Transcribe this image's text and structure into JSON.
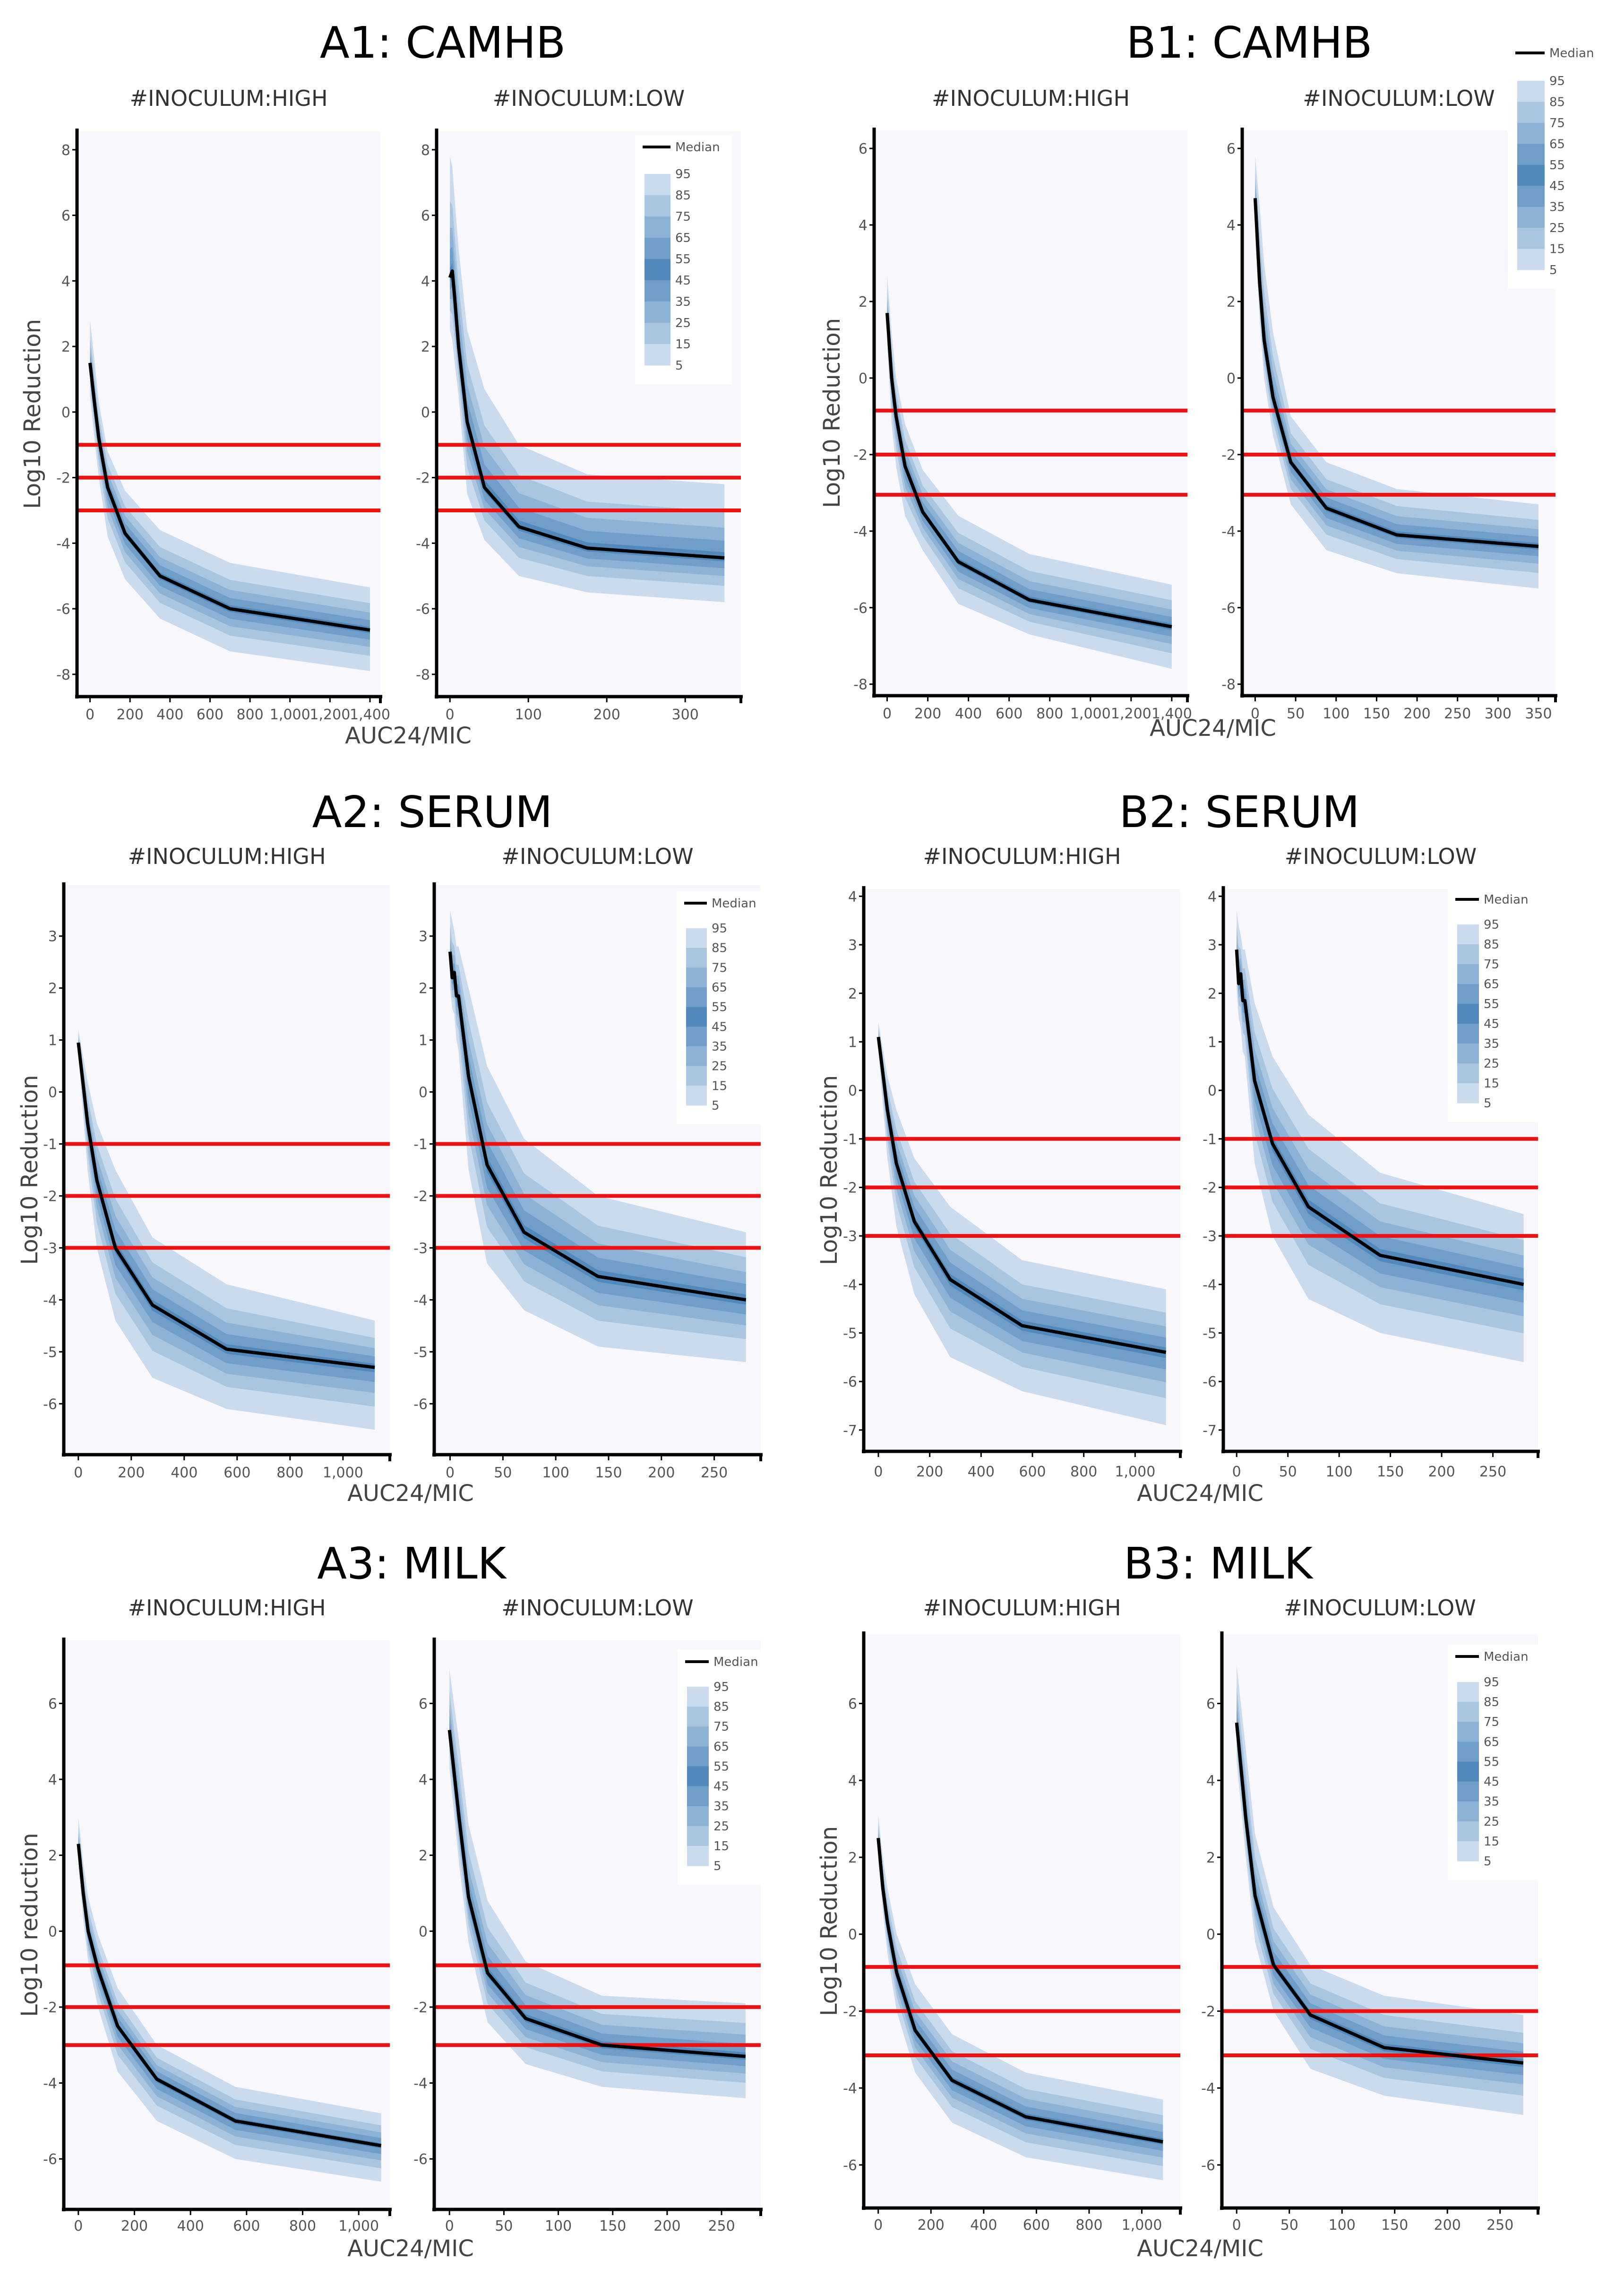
{
  "colors": {
    "band_5_95": "#c9dbec",
    "band_15_85": "#a9c5e0",
    "band_25_75": "#8cb2d6",
    "band_35_65": "#709ec9",
    "band_45_55": "#5289bd",
    "median": "#000000",
    "threshold": "#ee1111",
    "plot_bg": "#f8f8fc"
  },
  "chart_data": [
    {
      "id": "A1",
      "title": "A1: CAMHB",
      "type": "area",
      "xlabel": "AUC24/MIC",
      "ylabel": "Log10 Reduction",
      "ylim": [
        -8.68,
        8.56
      ],
      "yticks": [
        -8,
        -6,
        -4,
        -2,
        0,
        2,
        4,
        6,
        8
      ],
      "thresholds": [
        -1,
        -2,
        -3
      ],
      "legend": {
        "median_label": "Median",
        "levels": [
          "95",
          "85",
          "75",
          "65",
          "55",
          "45",
          "35",
          "25",
          "15",
          "5"
        ],
        "placement": "top-right of low-inoculum panel"
      },
      "panels": [
        {
          "subtitle": "#INOCULUM:HIGH",
          "xlim": [
            -65,
            1452
          ],
          "xticks": [
            0,
            200,
            400,
            600,
            800,
            1000,
            1200,
            1400
          ],
          "xtick_labels": [
            "0",
            "200",
            "400",
            "600",
            "800",
            "1,000",
            "1,200",
            "1,400"
          ],
          "x": [
            0,
            22,
            44,
            88,
            175,
            350,
            700,
            1400
          ],
          "median": [
            1.5,
            0.3,
            -0.8,
            -2.3,
            -3.7,
            -5.0,
            -6.0,
            -6.65
          ],
          "p95": [
            2.8,
            1.6,
            0.3,
            -1.2,
            -2.4,
            -3.6,
            -4.6,
            -5.35
          ],
          "p5": [
            0.5,
            -0.8,
            -2.0,
            -3.8,
            -5.1,
            -6.3,
            -7.3,
            -7.9
          ]
        },
        {
          "subtitle": "#INOCULUM:LOW",
          "xlim": [
            -17,
            371
          ],
          "xticks": [
            0,
            100,
            200,
            300
          ],
          "xtick_labels": [
            "0",
            "100",
            "200",
            "300"
          ],
          "x": [
            0,
            3,
            6,
            11,
            22,
            44,
            88,
            175,
            350
          ],
          "median": [
            4.1,
            4.3,
            3.5,
            2.0,
            -0.3,
            -2.3,
            -3.5,
            -4.15,
            -4.45
          ],
          "p95": [
            7.8,
            7.5,
            6.5,
            5.0,
            2.5,
            0.7,
            -1.0,
            -1.9,
            -2.2
          ],
          "p5": [
            2.5,
            2.2,
            1.5,
            0.5,
            -2.5,
            -3.9,
            -5.0,
            -5.5,
            -5.8
          ]
        }
      ]
    },
    {
      "id": "B1",
      "title": "B1: CAMHB",
      "type": "area",
      "xlabel": "AUC24/MIC",
      "ylabel": "Log10 Reduction",
      "ylim": [
        -8.3,
        6.47
      ],
      "yticks": [
        -8,
        -6,
        -4,
        -2,
        0,
        2,
        4,
        6
      ],
      "thresholds": [
        -0.85,
        -2,
        -3.05
      ],
      "legend": {
        "median_label": "Median",
        "levels": [
          "95",
          "85",
          "75",
          "65",
          "55",
          "45",
          "35",
          "25",
          "15",
          "5"
        ],
        "placement": "top-right outside"
      },
      "panels": [
        {
          "subtitle": "#INOCULUM:HIGH",
          "xlim": [
            -64,
            1477
          ],
          "xticks": [
            0,
            200,
            400,
            600,
            800,
            1000,
            1200,
            1400
          ],
          "xtick_labels": [
            "0",
            "200",
            "400",
            "600",
            "800",
            "1,000",
            "1,200",
            "1,400"
          ],
          "x": [
            0,
            22,
            44,
            88,
            175,
            350,
            700,
            1400
          ],
          "median": [
            1.7,
            0.0,
            -1.0,
            -2.3,
            -3.5,
            -4.8,
            -5.8,
            -6.5
          ],
          "p95": [
            2.7,
            1.2,
            0.0,
            -1.2,
            -2.4,
            -3.6,
            -4.6,
            -5.4
          ],
          "p5": [
            0.9,
            -1.2,
            -2.3,
            -3.6,
            -4.5,
            -5.9,
            -6.7,
            -7.6
          ]
        },
        {
          "subtitle": "#INOCULUM:LOW",
          "xlim": [
            -16,
            371
          ],
          "xticks": [
            0,
            50,
            100,
            150,
            200,
            250,
            300,
            350
          ],
          "xtick_labels": [
            "0",
            "50",
            "100",
            "150",
            "200",
            "250",
            "300",
            "350"
          ],
          "x": [
            0,
            5.5,
            11,
            22,
            44,
            88,
            175,
            350
          ],
          "median": [
            4.7,
            2.5,
            1.0,
            -0.5,
            -2.2,
            -3.4,
            -4.1,
            -4.4
          ],
          "p95": [
            5.8,
            4.5,
            3.0,
            1.2,
            -1.0,
            -2.2,
            -2.9,
            -3.3
          ],
          "p5": [
            3.7,
            1.5,
            0.0,
            -1.5,
            -3.3,
            -4.5,
            -5.1,
            -5.5
          ]
        }
      ]
    },
    {
      "id": "A2",
      "title": "A2: SERUM",
      "type": "area",
      "xlabel": "AUC24/MIC",
      "ylabel": "Log10 Reduction",
      "ylim": [
        -6.98,
        3.98
      ],
      "yticks": [
        -6,
        -5,
        -4,
        -3,
        -2,
        -1,
        0,
        1,
        2,
        3
      ],
      "thresholds": [
        -1,
        -2,
        -3
      ],
      "legend": {
        "median_label": "Median",
        "levels": [
          "95",
          "85",
          "75",
          "65",
          "55",
          "45",
          "35",
          "25",
          "15",
          "5"
        ],
        "placement": "top-right of low-inoculum panel"
      },
      "panels": [
        {
          "subtitle": "#INOCULUM:HIGH",
          "xlim": [
            -55,
            1177
          ],
          "xticks": [
            0,
            200,
            400,
            600,
            800,
            1000
          ],
          "xtick_labels": [
            "0",
            "200",
            "400",
            "600",
            "800",
            "1,000"
          ],
          "x": [
            0,
            35,
            70,
            140,
            280,
            560,
            1120
          ],
          "median": [
            0.95,
            -0.6,
            -1.7,
            -3.0,
            -4.1,
            -4.95,
            -5.3
          ],
          "p95": [
            1.2,
            0.2,
            -0.6,
            -1.5,
            -2.8,
            -3.7,
            -4.4
          ],
          "p5": [
            0.7,
            -1.5,
            -3.0,
            -4.4,
            -5.5,
            -6.1,
            -6.5
          ]
        },
        {
          "subtitle": "#INOCULUM:LOW",
          "xlim": [
            -15,
            294
          ],
          "xticks": [
            0,
            50,
            100,
            150,
            200,
            250
          ],
          "xtick_labels": [
            "0",
            "50",
            "100",
            "150",
            "200",
            "250"
          ],
          "x": [
            0,
            2,
            4,
            6,
            8,
            17.5,
            35,
            70,
            140,
            280
          ],
          "median": [
            2.7,
            2.2,
            2.3,
            1.85,
            1.85,
            0.3,
            -1.4,
            -2.7,
            -3.55,
            -4.0
          ],
          "p95": [
            3.5,
            3.3,
            3.1,
            2.8,
            2.8,
            2.0,
            0.5,
            -0.9,
            -2.0,
            -2.7
          ],
          "p5": [
            2.0,
            1.6,
            1.5,
            1.0,
            0.8,
            -1.5,
            -3.3,
            -4.2,
            -4.9,
            -5.2
          ]
        }
      ]
    },
    {
      "id": "B2",
      "title": "B2: SERUM",
      "type": "area",
      "xlabel": "AUC24/MIC",
      "ylabel": "Log10 Reduction",
      "ylim": [
        -7.44,
        4.15
      ],
      "yticks": [
        -7,
        -6,
        -5,
        -4,
        -3,
        -2,
        -1,
        0,
        1,
        2,
        3,
        4
      ],
      "thresholds": [
        -1,
        -2,
        -3
      ],
      "legend": {
        "median_label": "Median",
        "levels": [
          "95",
          "85",
          "75",
          "65",
          "55",
          "45",
          "35",
          "25",
          "15",
          "5"
        ],
        "placement": "top-right of low-inoculum panel"
      },
      "panels": [
        {
          "subtitle": "#INOCULUM:HIGH",
          "xlim": [
            -57,
            1176
          ],
          "xticks": [
            0,
            200,
            400,
            600,
            800,
            1000
          ],
          "xtick_labels": [
            "0",
            "200",
            "400",
            "600",
            "800",
            "1,000"
          ],
          "x": [
            0,
            35,
            70,
            140,
            280,
            560,
            1120
          ],
          "median": [
            1.1,
            -0.4,
            -1.5,
            -2.7,
            -3.9,
            -4.85,
            -5.4
          ],
          "p95": [
            1.4,
            0.3,
            -0.4,
            -1.4,
            -2.4,
            -3.5,
            -4.1
          ],
          "p5": [
            0.8,
            -1.4,
            -2.8,
            -4.2,
            -5.5,
            -6.2,
            -6.9
          ]
        },
        {
          "subtitle": "#INOCULUM:LOW",
          "xlim": [
            -13,
            294
          ],
          "xticks": [
            0,
            50,
            100,
            150,
            200,
            250
          ],
          "xtick_labels": [
            "0",
            "50",
            "100",
            "150",
            "200",
            "250"
          ],
          "x": [
            0,
            2,
            4,
            6,
            8,
            17.5,
            35,
            70,
            140,
            280
          ],
          "median": [
            2.9,
            2.2,
            2.4,
            1.85,
            1.85,
            0.2,
            -1.1,
            -2.4,
            -3.4,
            -4.0
          ],
          "p95": [
            3.7,
            3.4,
            3.2,
            2.9,
            2.9,
            1.8,
            0.7,
            -0.5,
            -1.7,
            -2.55
          ],
          "p5": [
            2.1,
            1.5,
            1.3,
            0.8,
            0.7,
            -1.5,
            -3.0,
            -4.3,
            -5.0,
            -5.6
          ]
        }
      ]
    },
    {
      "id": "A3",
      "title": "A3: MILK",
      "type": "area",
      "xlabel": "AUC24/MIC",
      "ylabel": "Log10 reduction",
      "ylim": [
        -7.33,
        7.66
      ],
      "yticks": [
        -6,
        -4,
        -2,
        0,
        2,
        4,
        6
      ],
      "thresholds": [
        -0.9,
        -2,
        -3
      ],
      "legend": {
        "median_label": "Median",
        "levels": [
          "95",
          "85",
          "75",
          "65",
          "55",
          "45",
          "35",
          "25",
          "15",
          "5"
        ],
        "placement": "top-right of low-inoculum panel"
      },
      "panels": [
        {
          "subtitle": "#INOCULUM:HIGH",
          "xlim": [
            -52,
            1111
          ],
          "xticks": [
            0,
            200,
            400,
            600,
            800,
            1000
          ],
          "xtick_labels": [
            "0",
            "200",
            "400",
            "600",
            "800",
            "1,000"
          ],
          "x": [
            0,
            17.5,
            35,
            70,
            140,
            280,
            560,
            1080
          ],
          "median": [
            2.3,
            1.0,
            0.0,
            -1.0,
            -2.5,
            -3.9,
            -5.0,
            -5.65
          ],
          "p95": [
            3.0,
            1.8,
            0.9,
            -0.1,
            -1.5,
            -3.0,
            -4.1,
            -4.8
          ],
          "p5": [
            1.7,
            0.3,
            -0.8,
            -2.0,
            -3.7,
            -5.0,
            -6.0,
            -6.6
          ]
        },
        {
          "subtitle": "#INOCULUM:LOW",
          "xlim": [
            -14,
            286
          ],
          "xticks": [
            0,
            50,
            100,
            150,
            200,
            250
          ],
          "xtick_labels": [
            "0",
            "50",
            "100",
            "150",
            "200",
            "250"
          ],
          "x": [
            0,
            8.75,
            17.5,
            35,
            70,
            140,
            272
          ],
          "median": [
            5.3,
            3.0,
            0.9,
            -1.1,
            -2.3,
            -3.0,
            -3.3
          ],
          "p95": [
            6.9,
            5.0,
            2.8,
            0.8,
            -0.8,
            -1.7,
            -1.9
          ],
          "p5": [
            4.3,
            1.8,
            -0.3,
            -2.4,
            -3.5,
            -4.1,
            -4.4
          ]
        }
      ]
    },
    {
      "id": "B3",
      "title": "B3: MILK",
      "type": "area",
      "xlabel": "AUC24/MIC",
      "ylabel": "Log10 Reduction",
      "ylim": [
        -7.12,
        7.8
      ],
      "yticks": [
        -6,
        -4,
        -2,
        0,
        2,
        4,
        6
      ],
      "thresholds": [
        -0.85,
        -2,
        -3.15
      ],
      "legend": {
        "median_label": "Median",
        "levels": [
          "95",
          "85",
          "75",
          "65",
          "55",
          "45",
          "35",
          "25",
          "15",
          "5"
        ],
        "placement": "top-right of low-inoculum panel"
      },
      "panels": [
        {
          "subtitle": "#INOCULUM:HIGH",
          "xlim": [
            -55,
            1146
          ],
          "xticks": [
            0,
            200,
            400,
            600,
            800,
            1000
          ],
          "xtick_labels": [
            "0",
            "200",
            "400",
            "600",
            "800",
            "1,000"
          ],
          "x": [
            0,
            17.5,
            35,
            70,
            140,
            280,
            560,
            1080
          ],
          "median": [
            2.5,
            1.2,
            0.3,
            -1.0,
            -2.5,
            -3.8,
            -4.75,
            -5.4
          ],
          "p95": [
            3.1,
            2.0,
            1.2,
            0.0,
            -1.3,
            -2.6,
            -3.6,
            -4.3
          ],
          "p5": [
            1.9,
            0.6,
            -0.5,
            -2.0,
            -3.6,
            -4.9,
            -5.8,
            -6.4
          ]
        },
        {
          "subtitle": "#INOCULUM:LOW",
          "xlim": [
            -14,
            286
          ],
          "xticks": [
            0,
            50,
            100,
            150,
            200,
            250
          ],
          "xtick_labels": [
            "0",
            "50",
            "100",
            "150",
            "200",
            "250"
          ],
          "x": [
            0,
            8.75,
            17.5,
            35,
            70,
            140,
            272
          ],
          "median": [
            5.5,
            3.0,
            1.0,
            -0.8,
            -2.1,
            -2.95,
            -3.35
          ],
          "p95": [
            7.0,
            4.8,
            2.6,
            0.7,
            -0.8,
            -1.6,
            -2.1
          ],
          "p5": [
            4.5,
            2.0,
            -0.2,
            -2.0,
            -3.5,
            -4.2,
            -4.7
          ]
        }
      ]
    }
  ]
}
